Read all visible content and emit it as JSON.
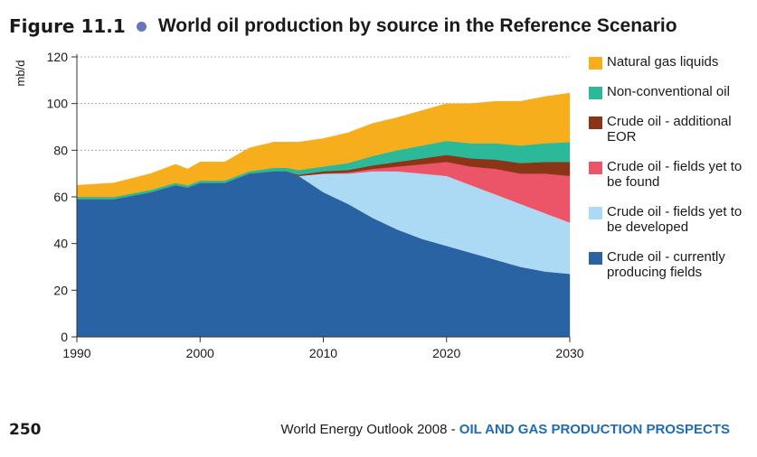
{
  "figure": {
    "label": "Figure 11.1",
    "title": "World oil production by source in the Reference Scenario"
  },
  "footer": {
    "page_number": "250",
    "publication": "World Energy Outlook 2008",
    "separator": " - ",
    "chapter": "OIL AND GAS PRODUCTION PROSPECTS"
  },
  "chart_data": {
    "type": "area",
    "stacked": true,
    "title": "World oil production by source in the Reference Scenario",
    "xlabel": "",
    "ylabel": "mb/d",
    "xlim": [
      1990,
      2030
    ],
    "ylim": [
      0,
      120
    ],
    "x_ticks": [
      "1990",
      "2000",
      "2010",
      "2020",
      "2030"
    ],
    "y_ticks": [
      "0",
      "20",
      "40",
      "60",
      "80",
      "100",
      "120"
    ],
    "grid": "horizontal dashed",
    "legend_position": "right",
    "x": [
      1990,
      1993,
      1996,
      1998,
      1999,
      2000,
      2002,
      2004,
      2006,
      2007,
      2008,
      2010,
      2012,
      2014,
      2016,
      2018,
      2020,
      2022,
      2024,
      2026,
      2028,
      2030
    ],
    "series": [
      {
        "name": "Crude oil - currently producing fields",
        "color": "#2a63a3",
        "values": [
          59,
          59,
          62,
          65,
          64,
          66,
          66,
          70,
          71,
          71,
          69,
          62,
          57,
          51,
          46,
          42,
          39,
          36,
          33,
          30,
          28,
          27
        ]
      },
      {
        "name": "Crude oil - fields yet to be developed",
        "color": "#acd9f3",
        "values": [
          0,
          0,
          0,
          0,
          0,
          0,
          0,
          0,
          0,
          0,
          0,
          8,
          13,
          20,
          25,
          28,
          30,
          29,
          28,
          27,
          25,
          22
        ]
      },
      {
        "name": "Crude oil - fields yet to be found",
        "color": "#ec5468",
        "values": [
          0,
          0,
          0,
          0,
          0,
          0,
          0,
          0,
          0,
          0,
          0,
          0,
          0.5,
          1,
          2,
          4,
          6,
          8,
          11,
          13,
          17,
          20
        ]
      },
      {
        "name": "Crude oil - additional EOR",
        "color": "#8a3516",
        "values": [
          0,
          0,
          0,
          0,
          0,
          0,
          0,
          0,
          0,
          0,
          0.5,
          1,
          1,
          1.5,
          2,
          2.5,
          3,
          3.5,
          4,
          4.5,
          5,
          6
        ]
      },
      {
        "name": "Non-conventional oil",
        "color": "#2cb99a",
        "values": [
          1,
          1,
          1,
          1,
          1,
          1,
          1,
          1,
          1.5,
          1.5,
          2,
          2,
          3,
          4,
          5,
          5.5,
          6,
          6.5,
          7,
          7.5,
          8,
          8.5
        ]
      },
      {
        "name": "Natural gas liquids",
        "color": "#f7ae1c",
        "values": [
          5,
          6,
          7,
          8,
          7,
          8,
          8,
          10,
          11,
          11,
          12,
          12,
          13,
          14,
          14,
          15,
          16,
          17,
          18,
          19,
          20,
          21
        ]
      }
    ]
  }
}
